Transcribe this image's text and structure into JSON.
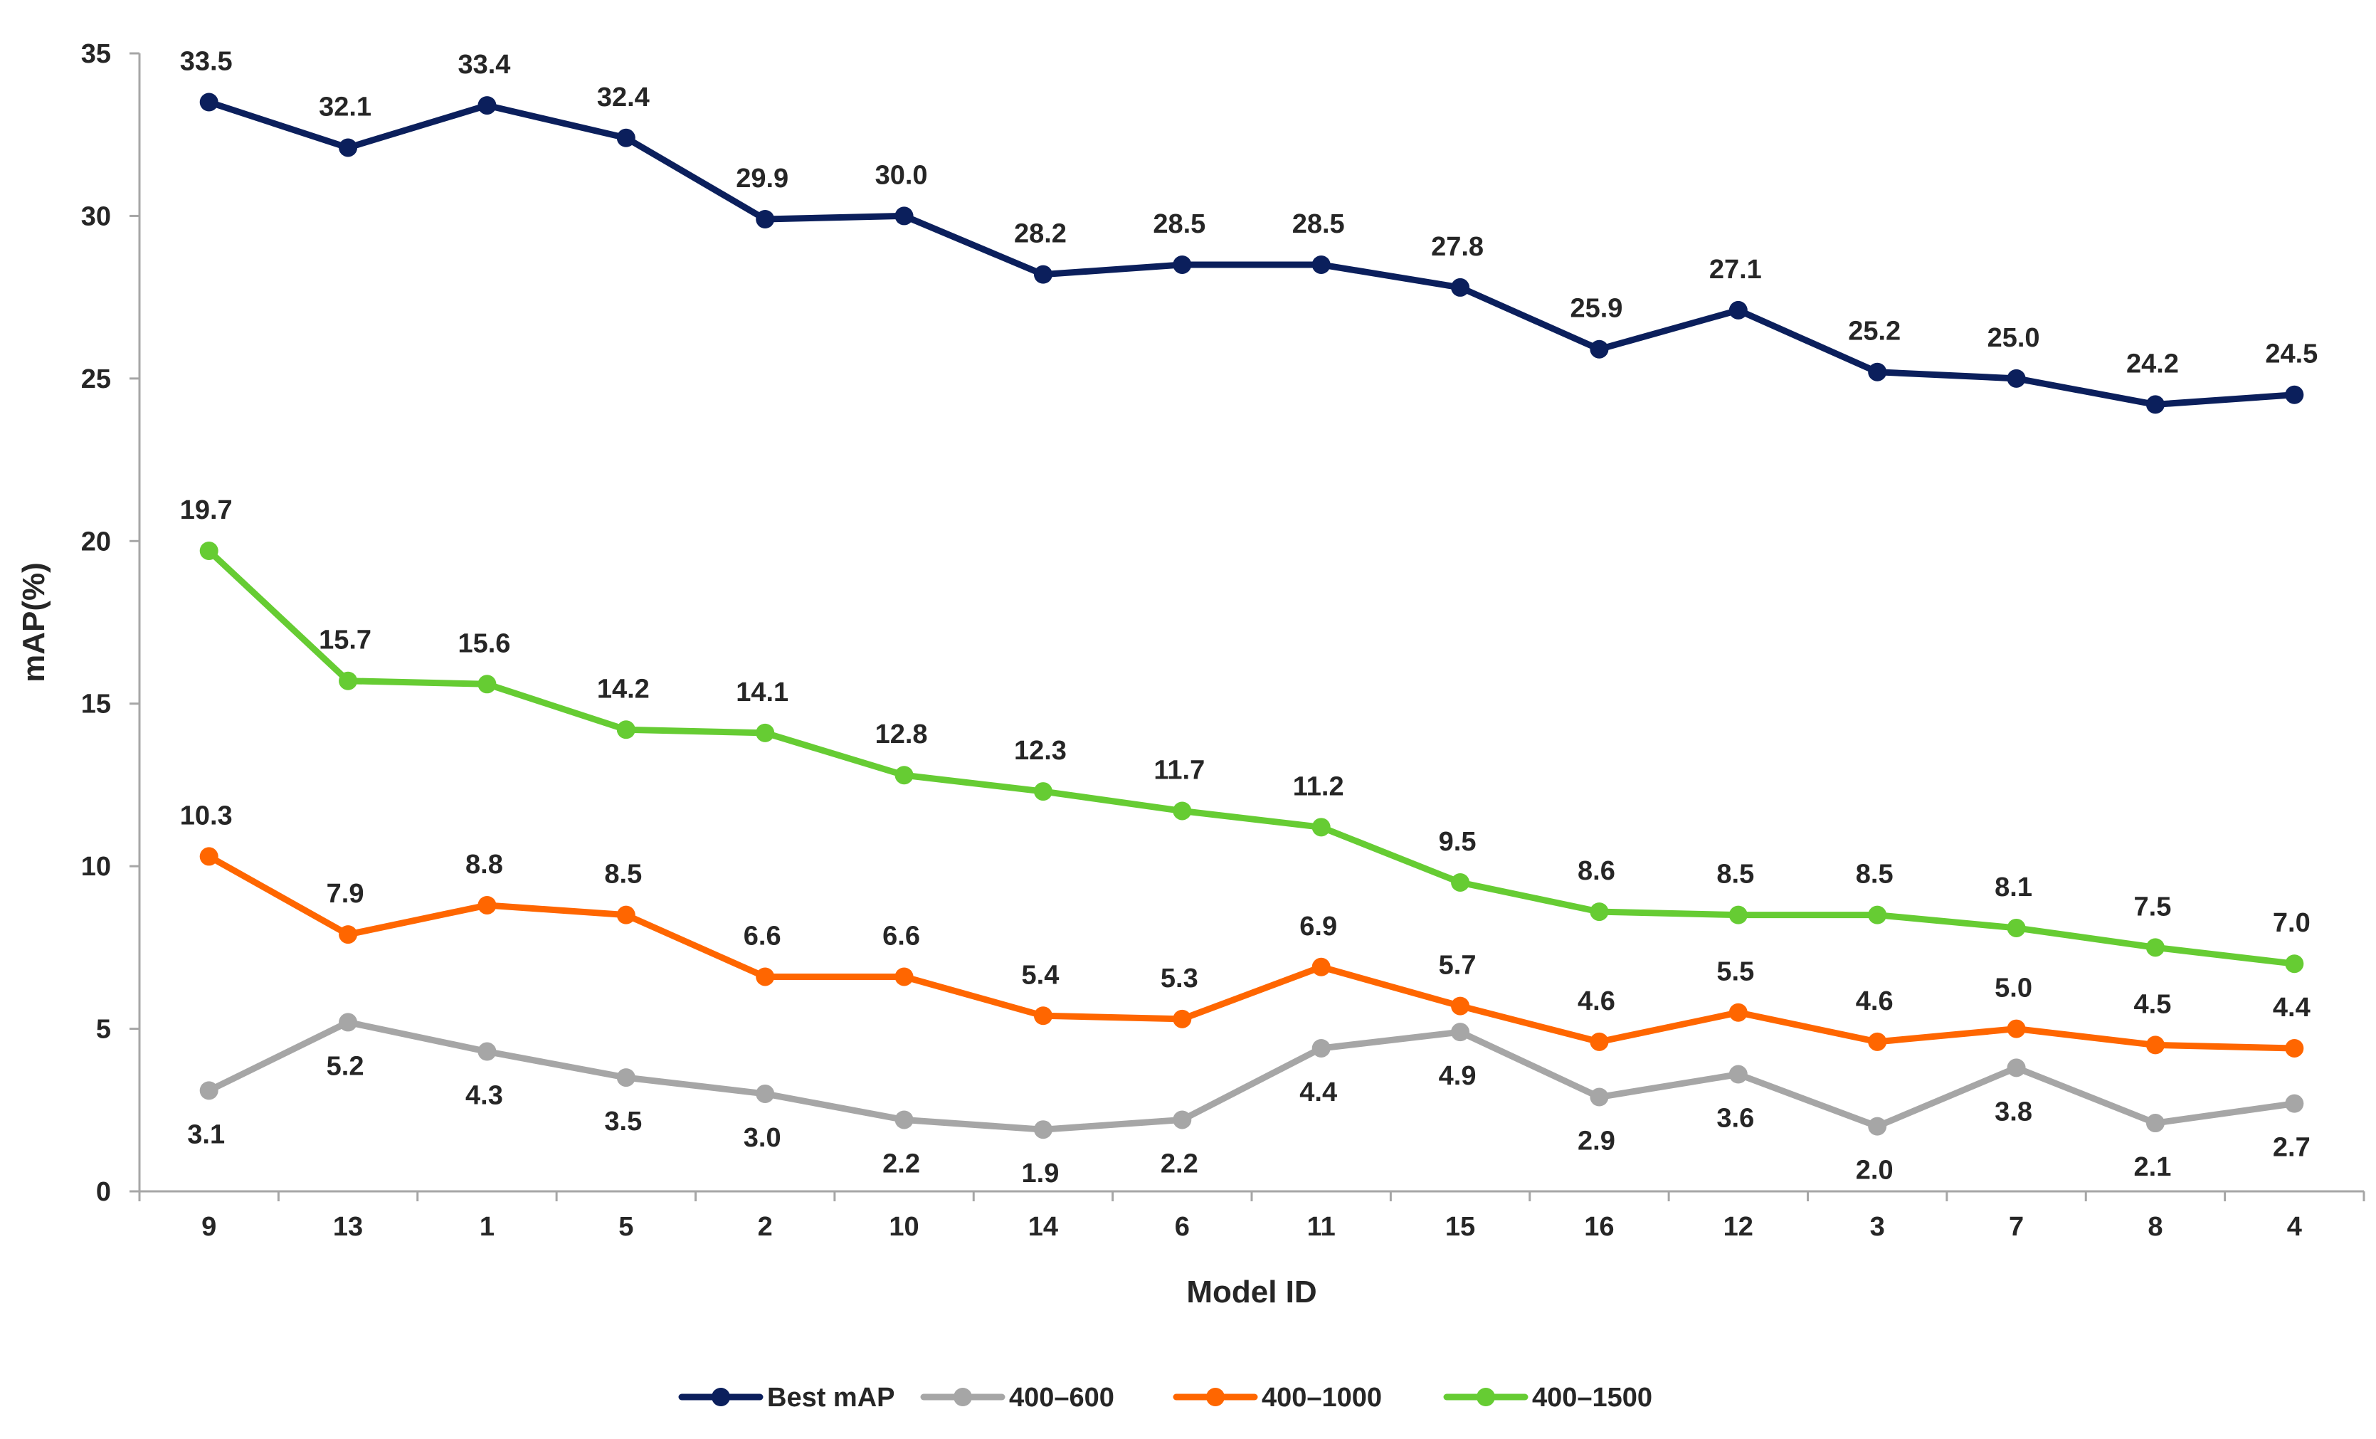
{
  "chart_data": {
    "type": "line",
    "title": "",
    "xlabel": "Model ID",
    "ylabel": "mAP(%)",
    "ylim": [
      0,
      35
    ],
    "yticks": [
      0,
      5,
      10,
      15,
      20,
      25,
      30,
      35
    ],
    "grid": false,
    "legend_position": "bottom",
    "categories": [
      "9",
      "13",
      "1",
      "5",
      "2",
      "10",
      "14",
      "6",
      "11",
      "15",
      "16",
      "12",
      "3",
      "7",
      "8",
      "4"
    ],
    "series": [
      {
        "name": "Best mAP",
        "color": "#0b1f5c",
        "label_position": "above",
        "values": [
          33.5,
          32.1,
          33.4,
          32.4,
          29.9,
          30.0,
          28.2,
          28.5,
          28.5,
          27.8,
          25.9,
          27.1,
          25.2,
          25.0,
          24.2,
          24.5
        ],
        "labels": [
          "33.5",
          "32.1",
          "33.4",
          "32.4",
          "29.9",
          "30.0",
          "28.2",
          "28.5",
          "28.5",
          "27.8",
          "25.9",
          "27.1",
          "25.2",
          "25.0",
          "24.2",
          "24.5"
        ]
      },
      {
        "name": "400–600",
        "color": "#a6a6a6",
        "label_position": "below",
        "values": [
          3.1,
          5.2,
          4.3,
          3.5,
          3.0,
          2.2,
          1.9,
          2.2,
          4.4,
          4.9,
          2.9,
          3.6,
          2.0,
          3.8,
          2.1,
          2.7
        ],
        "labels": [
          "3.1",
          "5.2",
          "4.3",
          "3.5",
          "3.0",
          "2.2",
          "1.9",
          "2.2",
          "4.4",
          "4.9",
          "2.9",
          "3.6",
          "2.0",
          "3.8",
          "2.1",
          "2.7"
        ]
      },
      {
        "name": "400–1000",
        "color": "#ff6600",
        "label_position": "above",
        "values": [
          10.3,
          7.9,
          8.8,
          8.5,
          6.6,
          6.6,
          5.4,
          5.3,
          6.9,
          5.7,
          4.6,
          5.5,
          4.6,
          5.0,
          4.5,
          4.4
        ],
        "labels": [
          "10.3",
          "7.9",
          "8.8",
          "8.5",
          "6.6",
          "6.6",
          "5.4",
          "5.3",
          "6.9",
          "5.7",
          "4.6",
          "5.5",
          "4.6",
          "5.0",
          "4.5",
          "4.4"
        ]
      },
      {
        "name": "400–1500",
        "color": "#66cc33",
        "label_position": "above",
        "values": [
          19.7,
          15.7,
          15.6,
          14.2,
          14.1,
          12.8,
          12.3,
          11.7,
          11.2,
          9.5,
          8.6,
          8.5,
          8.5,
          8.1,
          7.5,
          7.0
        ],
        "labels": [
          "19.7",
          "15.7",
          "15.6",
          "14.2",
          "14.1",
          "12.8",
          "12.3",
          "11.7",
          "11.2",
          "9.5",
          "8.6",
          "8.5",
          "8.5",
          "8.1",
          "7.5",
          "7.0"
        ]
      }
    ]
  }
}
